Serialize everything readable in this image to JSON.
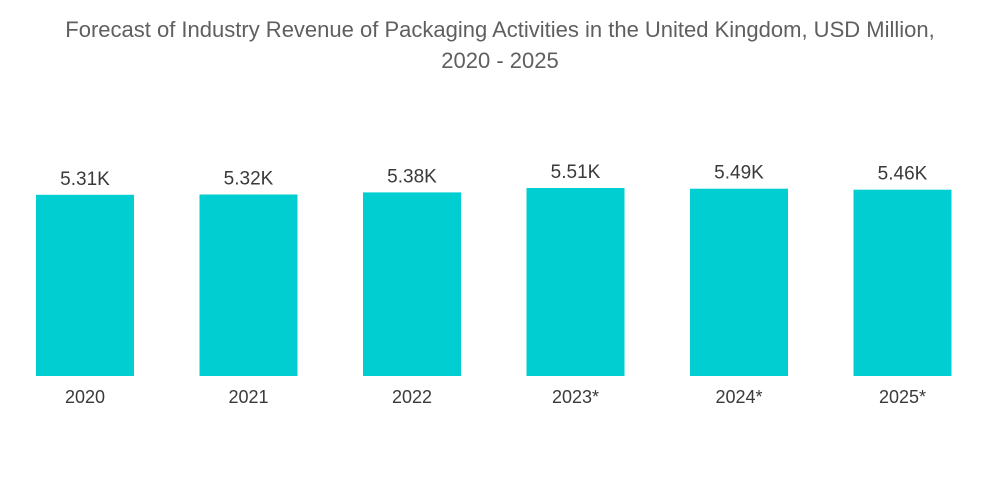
{
  "chart_data": {
    "type": "bar",
    "title_line1": "Forecast of Industry Revenue of Packaging Activities in the United Kingdom, USD Million,",
    "title_line2": "2020 - 2025",
    "categories": [
      "2020",
      "2021",
      "2022",
      "2023*",
      "2024*",
      "2025*"
    ],
    "values": [
      5310,
      5320,
      5380,
      5510,
      5490,
      5460
    ],
    "value_labels": [
      "5.31K",
      "5.32K",
      "5.38K",
      "5.51K",
      "5.49K",
      "5.46K"
    ],
    "bar_color": "#00ced1",
    "grid": false,
    "legend": "none"
  }
}
